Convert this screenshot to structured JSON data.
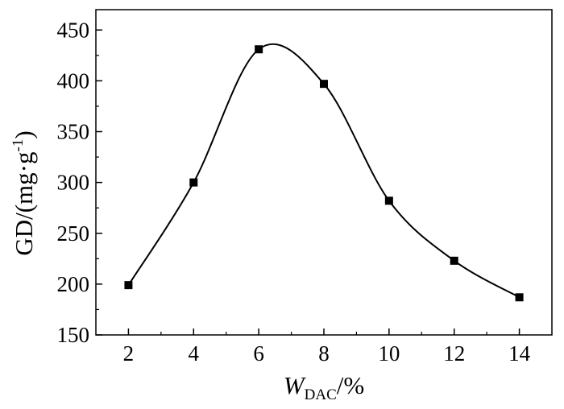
{
  "chart_data": {
    "type": "scatter",
    "title": "",
    "x_ticks": [
      "2",
      "4",
      "6",
      "8",
      "10",
      "12",
      "14"
    ],
    "y_ticks": [
      "150",
      "200",
      "250",
      "300",
      "350",
      "400",
      "450"
    ],
    "xlim": [
      1.0,
      15.0
    ],
    "ylim": [
      150,
      470
    ],
    "xlabel": {
      "main": "W",
      "subscript": "DAC",
      "suffix": "/%"
    },
    "ylabel": {
      "prefix": "GD/(mg·g",
      "superscript": "-1",
      "suffix": ")"
    },
    "series": [
      {
        "points": [
          {
            "x": 2,
            "y": 199
          },
          {
            "x": 4,
            "y": 300
          },
          {
            "x": 6,
            "y": 431
          },
          {
            "x": 8,
            "y": 397
          },
          {
            "x": 10,
            "y": 282
          },
          {
            "x": 12,
            "y": 223
          },
          {
            "x": 14,
            "y": 187
          }
        ],
        "marker": "square",
        "fit_line": "smooth",
        "color": "#000000"
      }
    ],
    "grid": false,
    "legend": "none"
  }
}
